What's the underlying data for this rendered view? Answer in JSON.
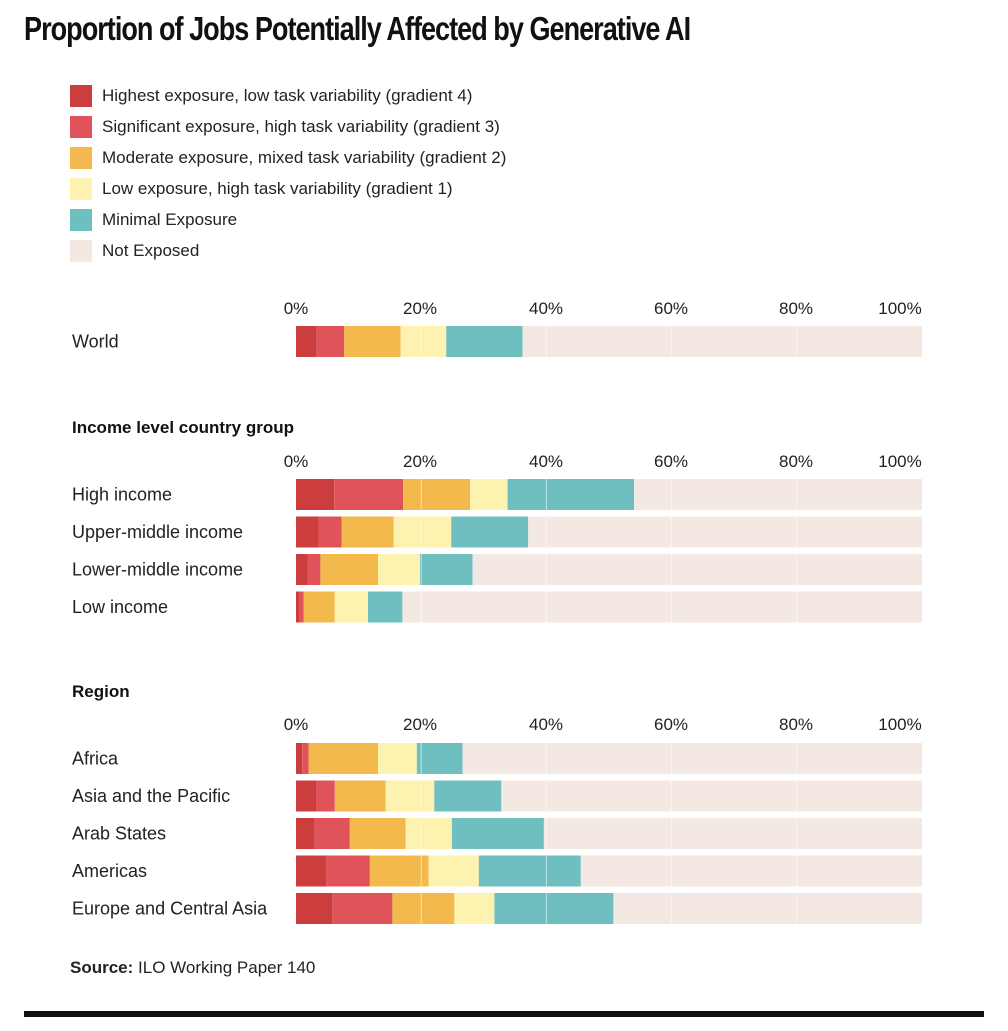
{
  "title": "Proportion of Jobs Potentially Affected by Generative AI",
  "source": {
    "label": "Source:",
    "text": "ILO Working Paper 140"
  },
  "chart_data": {
    "type": "bar",
    "orientation": "horizontal",
    "stacked": true,
    "legend_position": "top-left",
    "xlim": [
      0,
      100
    ],
    "x_ticks": [
      "0%",
      "20%",
      "40%",
      "60%",
      "80%",
      "100%"
    ],
    "segments": [
      {
        "name": "Highest exposure, low task variability (gradient 4)",
        "color": "#cc3d3d"
      },
      {
        "name": "Significant exposure, high task variability (gradient 3)",
        "color": "#e0535a"
      },
      {
        "name": "Moderate exposure, mixed task variability (gradient 2)",
        "color": "#f4b94d"
      },
      {
        "name": "Low exposure, high task variability (gradient 1)",
        "color": "#fdf2b0"
      },
      {
        "name": "Minimal Exposure",
        "color": "#6fbfc1"
      },
      {
        "name": "Not Exposed",
        "color": "#f3e9e2"
      }
    ],
    "groups": [
      {
        "title": "",
        "rows": [
          {
            "label": "World",
            "values": [
              3.3,
              4.4,
              9.0,
              7.3,
              12.2,
              63.8
            ]
          }
        ]
      },
      {
        "title": "Income level country group",
        "rows": [
          {
            "label": "High income",
            "values": [
              6.1,
              11.0,
              10.7,
              6.0,
              20.2,
              46.0
            ]
          },
          {
            "label": "Upper-middle income",
            "values": [
              3.6,
              3.7,
              8.3,
              9.2,
              12.3,
              62.9
            ]
          },
          {
            "label": "Lower-middle income",
            "values": [
              1.9,
              2.0,
              9.2,
              6.7,
              8.4,
              71.8
            ]
          },
          {
            "label": "Low income",
            "values": [
              0.6,
              0.6,
              5.0,
              5.3,
              5.5,
              83.0
            ]
          }
        ]
      },
      {
        "title": "Region",
        "rows": [
          {
            "label": "Africa",
            "values": [
              1.0,
              1.0,
              11.1,
              6.2,
              7.3,
              73.4
            ]
          },
          {
            "label": "Asia and the Pacific",
            "values": [
              3.2,
              3.0,
              8.1,
              7.8,
              10.7,
              67.2
            ]
          },
          {
            "label": "Arab States",
            "values": [
              3.0,
              5.6,
              8.9,
              7.4,
              14.7,
              60.4
            ]
          },
          {
            "label": "Americas",
            "values": [
              4.8,
              7.0,
              9.4,
              8.0,
              16.3,
              54.5
            ]
          },
          {
            "label": "Europe and Central Asia",
            "values": [
              5.8,
              9.6,
              9.9,
              6.4,
              19.0,
              49.3
            ]
          }
        ]
      }
    ]
  }
}
